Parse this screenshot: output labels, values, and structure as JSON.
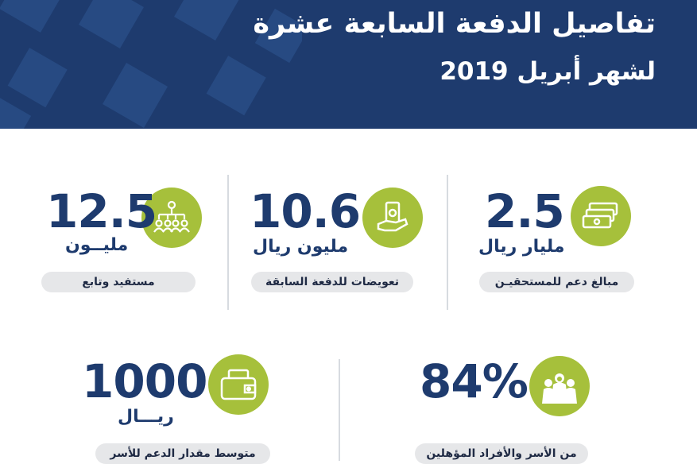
{
  "header": {
    "title_line1": "تفاصيل الدفعة السابعة عشرة",
    "title_line2": "لشهر أبريل 2019"
  },
  "stats": [
    {
      "value": "2.5",
      "unit": "مليار ريال",
      "label": "مبالغ دعم للمستحقيـن",
      "icon": "money-stack-icon"
    },
    {
      "value": "10.6",
      "unit": "مليون ريال",
      "label": "تعويضات للدفعة السابقة",
      "icon": "hand-cash-icon"
    },
    {
      "value": "12.5",
      "unit": "مليــون",
      "label": "مستفيد وتابع",
      "icon": "hierarchy-people-icon"
    },
    {
      "value": "84%",
      "unit": "",
      "label": "من الأسر والأفراد المؤهلين",
      "icon": "family-icon"
    },
    {
      "value": "1000",
      "unit": "ريـــال",
      "label": "متوسط مقدار الدعم للأسر",
      "icon": "wallet-icon"
    }
  ],
  "colors": {
    "navy": "#1e3b6e",
    "green": "#a6c03b",
    "pill": "#e6e7e9"
  }
}
